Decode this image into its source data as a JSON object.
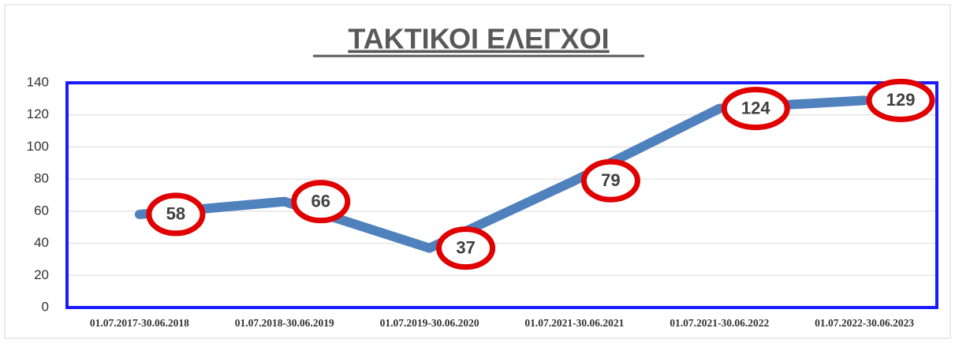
{
  "chart_data": {
    "type": "line",
    "title": "ΤΑΚΤΙΚΟΙ ΕΛΕΓΧΟΙ",
    "categories": [
      "01.07.2017-30.06.2018",
      "01.07.2018-30.06.2019",
      "01.07.2019-30.06.2020",
      "01.07.2021-30.06.2021",
      "01.07.2021-30.06.2022",
      "01.07.2022-30.06.2023"
    ],
    "values": [
      58,
      66,
      37,
      79,
      124,
      129
    ],
    "color": "#4f81bd",
    "label_color": "#e00000",
    "ylim": [
      0,
      140
    ],
    "yticks": [
      0,
      20,
      40,
      60,
      80,
      100,
      120,
      140
    ],
    "grid": true
  }
}
